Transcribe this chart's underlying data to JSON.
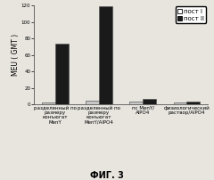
{
  "categories": [
    "разделенный по\nразмеру\nконъюгат\nMenY",
    "разделенный по\nразмеру\nконъюгат\nMenY/AlPO4",
    "пс MenY/\nAlPO4",
    "физиологический\nраствор/AlPO4"
  ],
  "post1_values": [
    2.0,
    4.5,
    3.5,
    2.5
  ],
  "post2_values": [
    74,
    119,
    6.5,
    3.5
  ],
  "ylabel": "МЕU ( GMT )",
  "ylim": [
    0,
    120
  ],
  "yticks": [
    0,
    20,
    40,
    60,
    80,
    100,
    120
  ],
  "legend_post1": "пост I",
  "legend_post2": "пост II",
  "figure_title": "ФИГ. 3",
  "bar_width": 0.3,
  "color_post1": "#c8c8c8",
  "color_post2": "#1a1a1a",
  "edge_color": "#555555",
  "background_color": "#e8e5df",
  "title_fontsize": 7,
  "tick_fontsize": 4.0,
  "ylabel_fontsize": 5.5,
  "legend_fontsize": 5.0
}
